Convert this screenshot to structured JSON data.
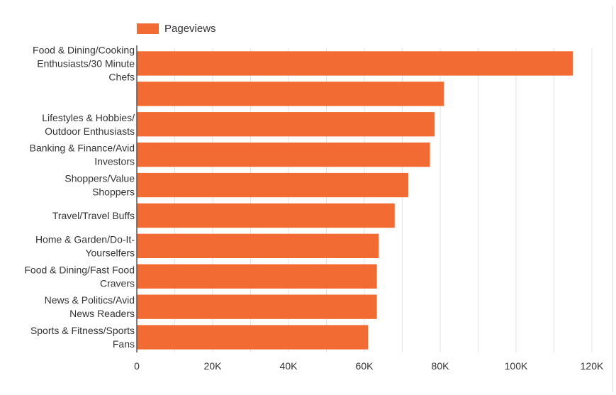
{
  "legend": {
    "series_label": "Pageviews"
  },
  "colors": {
    "bar": "#f26b32",
    "grid": "#e3e3e3",
    "axis": "#555555",
    "text": "#333333"
  },
  "chart_data": {
    "type": "bar",
    "orientation": "horizontal",
    "categories": [
      [
        "Food & Dining/Cooking",
        "Enthusiasts/30 Minute",
        "Chefs"
      ],
      [],
      [
        "Lifestyles & Hobbies/",
        "Outdoor Enthusiasts"
      ],
      [
        "Banking & Finance/Avid",
        "Investors"
      ],
      [
        "Shoppers/Value",
        "Shoppers"
      ],
      [
        "Travel/Travel Buffs"
      ],
      [
        "Home & Garden/Do-It-",
        "Yourselfers"
      ],
      [
        "Food & Dining/Fast Food",
        "Cravers"
      ],
      [
        "News & Politics/Avid",
        "News Readers"
      ],
      [
        "Sports & Fitness/Sports",
        "Fans"
      ]
    ],
    "series": [
      {
        "name": "Pageviews",
        "values": [
          115000,
          81000,
          78500,
          77300,
          71600,
          68000,
          63800,
          63300,
          63300,
          61000
        ]
      }
    ],
    "xlim": [
      0,
      120000
    ],
    "xticks": [
      0,
      20000,
      40000,
      60000,
      80000,
      100000,
      120000
    ],
    "xtick_labels": [
      "0",
      "20K",
      "40K",
      "60K",
      "80K",
      "100K",
      "120K"
    ],
    "grid": true,
    "legend_position": "top-left",
    "title": "",
    "xlabel": "",
    "ylabel": ""
  }
}
